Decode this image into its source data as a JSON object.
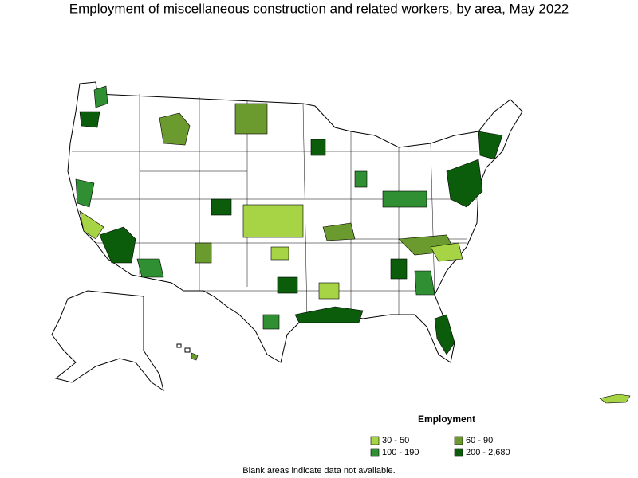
{
  "title": "Employment of miscellaneous construction and related workers, by area, May 2022",
  "legend": {
    "title": "Employment",
    "items": [
      {
        "label": "30 - 50",
        "color": "#a6d444"
      },
      {
        "label": "60 - 90",
        "color": "#6b9a2e"
      },
      {
        "label": "100 - 190",
        "color": "#2f8f32"
      },
      {
        "label": "200 - 2,680",
        "color": "#0b5d0b"
      }
    ]
  },
  "footnote": "Blank areas indicate data not available."
}
